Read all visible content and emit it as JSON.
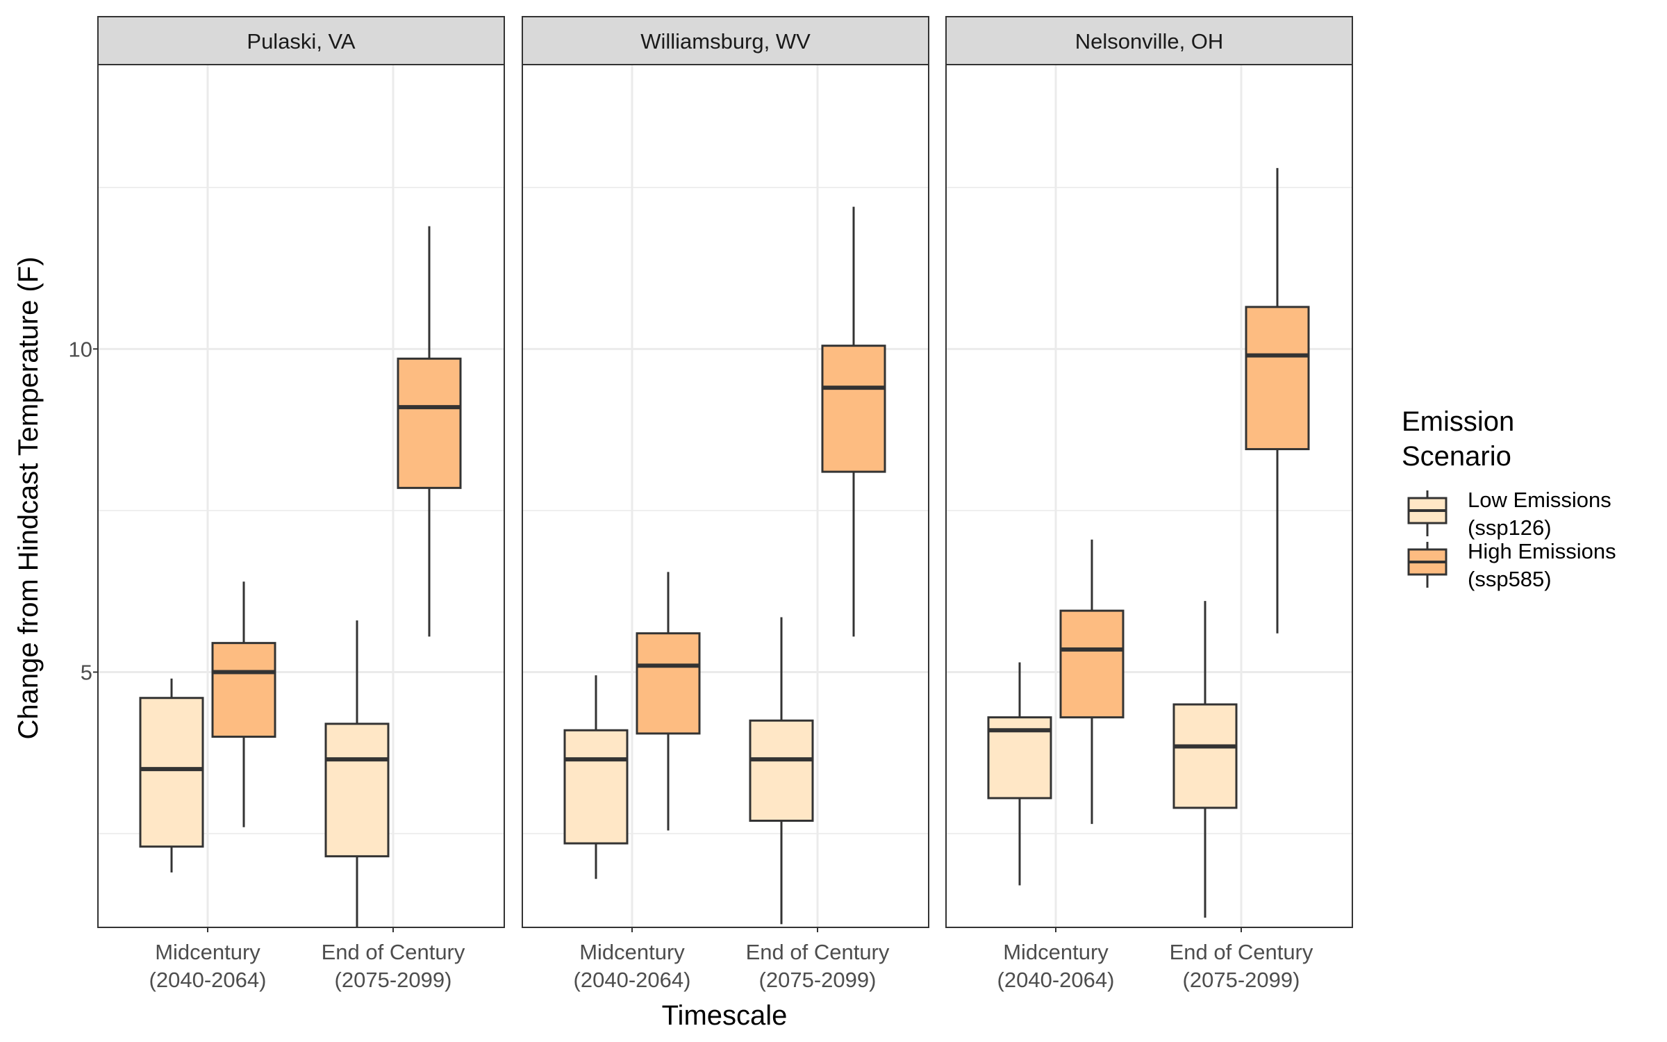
{
  "chart_data": {
    "type": "box",
    "title": "",
    "xlabel": "Timescale",
    "ylabel": "Change from Hindcast Temperature (F)",
    "ylim": [
      1.05,
      14.4
    ],
    "yticks": [
      5,
      10
    ],
    "y_gridlines": [
      2.5,
      5,
      7.5,
      10,
      12.5
    ],
    "grid": true,
    "categories": [
      [
        "Midcentury",
        "(2040-2064)"
      ],
      [
        "End of Century",
        "(2075-2099)"
      ]
    ],
    "legend": {
      "title_lines": [
        "Emission",
        "Scenario"
      ],
      "position": "right",
      "entries": [
        {
          "lines": [
            "Low Emissions",
            "(ssp126)"
          ],
          "color": "#FFE7C6"
        },
        {
          "lines": [
            "High Emissions",
            "(ssp585)"
          ],
          "color": "#FDBC81"
        }
      ]
    },
    "colors": {
      "low": "#FFE7C6",
      "high": "#FDBC81",
      "box_stroke": "#333333",
      "strip_fill": "#D9D9D9",
      "grid": "#EBEBEB"
    },
    "panels": [
      {
        "label": "Pulaski, VA",
        "boxes": [
          {
            "category": 0,
            "scenario": "low",
            "min": 1.9,
            "q1": 2.3,
            "median": 3.5,
            "q3": 4.6,
            "max": 4.9
          },
          {
            "category": 0,
            "scenario": "high",
            "min": 2.6,
            "q1": 4.0,
            "median": 5.0,
            "q3": 5.45,
            "max": 6.4
          },
          {
            "category": 1,
            "scenario": "low",
            "min": 1.05,
            "q1": 2.15,
            "median": 3.65,
            "q3": 4.2,
            "max": 5.8
          },
          {
            "category": 1,
            "scenario": "high",
            "min": 5.55,
            "q1": 7.85,
            "median": 9.1,
            "q3": 9.85,
            "max": 11.9
          }
        ]
      },
      {
        "label": "Williamsburg, WV",
        "boxes": [
          {
            "category": 0,
            "scenario": "low",
            "min": 1.8,
            "q1": 2.35,
            "median": 3.65,
            "q3": 4.1,
            "max": 4.95
          },
          {
            "category": 0,
            "scenario": "high",
            "min": 2.55,
            "q1": 4.05,
            "median": 5.1,
            "q3": 5.6,
            "max": 6.55
          },
          {
            "category": 1,
            "scenario": "low",
            "min": 1.1,
            "q1": 2.7,
            "median": 3.65,
            "q3": 4.25,
            "max": 5.85
          },
          {
            "category": 1,
            "scenario": "high",
            "min": 5.55,
            "q1": 8.1,
            "median": 9.4,
            "q3": 10.05,
            "max": 12.2
          }
        ]
      },
      {
        "label": "Nelsonville, OH",
        "boxes": [
          {
            "category": 0,
            "scenario": "low",
            "min": 1.7,
            "q1": 3.05,
            "median": 4.1,
            "q3": 4.3,
            "max": 5.15
          },
          {
            "category": 0,
            "scenario": "high",
            "min": 2.65,
            "q1": 4.3,
            "median": 5.35,
            "q3": 5.95,
            "max": 7.05
          },
          {
            "category": 1,
            "scenario": "low",
            "min": 1.2,
            "q1": 2.9,
            "median": 3.85,
            "q3": 4.5,
            "max": 6.1
          },
          {
            "category": 1,
            "scenario": "high",
            "min": 5.6,
            "q1": 8.45,
            "median": 9.9,
            "q3": 10.65,
            "max": 12.8
          }
        ]
      }
    ]
  }
}
